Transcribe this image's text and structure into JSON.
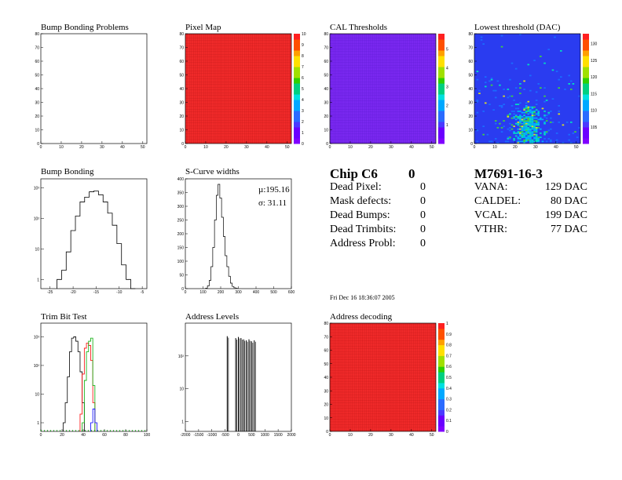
{
  "panels": {
    "bump_problems": {
      "title": "Bump Bonding Problems"
    },
    "pixel_map": {
      "title": "Pixel Map"
    },
    "cal_thresholds": {
      "title": "CAL Thresholds"
    },
    "lowest_threshold": {
      "title": "Lowest threshold (DAC)"
    },
    "bump_bonding": {
      "title": "Bump Bonding"
    },
    "scurve": {
      "title": "S-Curve widths",
      "mu": "µ:195.16",
      "sigma": "σ: 31.11"
    },
    "trim": {
      "title": "Trim Bit Test"
    },
    "address_levels": {
      "title": "Address Levels"
    },
    "address_decoding": {
      "title": "Address decoding"
    }
  },
  "chip": {
    "label": "Chip C6",
    "number": "0",
    "rows": [
      {
        "label": "Dead Pixel:",
        "value": "0"
      },
      {
        "label": "Mask defects:",
        "value": "0"
      },
      {
        "label": "Dead Bumps:",
        "value": "0"
      },
      {
        "label": "Dead Trimbits:",
        "value": "0"
      },
      {
        "label": "Address Probl:",
        "value": "0"
      }
    ],
    "date": "Fri Dec 16 18:36:07 2005"
  },
  "module": {
    "id": "M7691-16-3",
    "rows": [
      {
        "label": "VANA:",
        "value": "129 DAC"
      },
      {
        "label": "CALDEL:",
        "value": "80 DAC"
      },
      {
        "label": "VCAL:",
        "value": "199 DAC"
      },
      {
        "label": "VTHR:",
        "value": "77 DAC"
      }
    ]
  },
  "chart_data": [
    {
      "type": "heatmap",
      "title": "Bump Bonding Problems",
      "xlim": [
        0,
        52
      ],
      "ylim": [
        0,
        80
      ],
      "xticks": [
        "0",
        "10",
        "20",
        "30",
        "40",
        "50"
      ],
      "yticks": [
        "0",
        "10",
        "20",
        "30",
        "40",
        "50",
        "60",
        "70",
        "80"
      ],
      "values": "empty"
    },
    {
      "type": "heatmap",
      "title": "Pixel Map",
      "xlim": [
        0,
        52
      ],
      "ylim": [
        0,
        80
      ],
      "xticks": [
        "0",
        "10",
        "20",
        "30",
        "40",
        "50"
      ],
      "yticks": [
        "0",
        "10",
        "20",
        "30",
        "40",
        "50",
        "60",
        "70",
        "80"
      ],
      "zlim": [
        0,
        10
      ],
      "zticks": [
        "0",
        "1",
        "2",
        "3",
        "4",
        "5",
        "6",
        "7",
        "8",
        "9",
        "10"
      ],
      "uniform_value": 10
    },
    {
      "type": "heatmap",
      "title": "CAL Thresholds",
      "xlim": [
        0,
        52
      ],
      "ylim": [
        0,
        80
      ],
      "xticks": [
        "0",
        "10",
        "20",
        "30",
        "40",
        "50"
      ],
      "yticks": [
        "0",
        "10",
        "20",
        "30",
        "40",
        "50",
        "60",
        "70",
        "80"
      ],
      "zlim": [
        0,
        5.8
      ],
      "zticks": [
        "1",
        "2",
        "3",
        "4",
        "5"
      ],
      "uniform_value": 0.5
    },
    {
      "type": "heatmap",
      "title": "Lowest threshold (DAC)",
      "xlim": [
        0,
        52
      ],
      "ylim": [
        0,
        80
      ],
      "xticks": [
        "0",
        "10",
        "20",
        "30",
        "40",
        "50"
      ],
      "yticks": [
        "0",
        "10",
        "20",
        "30",
        "40",
        "50",
        "60",
        "70",
        "80"
      ],
      "zlim": [
        100,
        133
      ],
      "zticks": [
        "105",
        "110",
        "115",
        "120",
        "125",
        "130"
      ],
      "baseline_value": 100,
      "hotspot": {
        "x_center": 26,
        "y_center": 12,
        "description_values": [
          105,
          110,
          115
        ]
      }
    },
    {
      "type": "line",
      "title": "Bump Bonding",
      "log_y": true,
      "xlim": [
        -27,
        -4
      ],
      "xticks": [
        "-25",
        "-20",
        "-15",
        "-10",
        "-5"
      ],
      "yticks": [
        "1",
        "10",
        "10²",
        "10³"
      ],
      "ylim": [
        0.5,
        2000
      ],
      "x": [
        -23,
        -22,
        -21,
        -20,
        -19,
        -18,
        -17,
        -16,
        -15,
        -14,
        -13,
        -12,
        -11,
        -10,
        -9,
        -8,
        -7
      ],
      "values": [
        1,
        2,
        8,
        40,
        120,
        350,
        500,
        750,
        800,
        600,
        350,
        150,
        60,
        15,
        3,
        1,
        0
      ]
    },
    {
      "type": "line",
      "title": "S-Curve widths",
      "xlim": [
        0,
        600
      ],
      "ylim": [
        0,
        400
      ],
      "xticks": [
        "0",
        "100",
        "200",
        "300",
        "400",
        "500",
        "600"
      ],
      "yticks": [
        "0",
        "50",
        "100",
        "150",
        "200",
        "250",
        "300",
        "350",
        "400"
      ],
      "x": [
        120,
        130,
        140,
        150,
        160,
        170,
        180,
        190,
        200,
        210,
        220,
        230,
        240,
        250,
        260,
        270,
        280,
        290
      ],
      "values": [
        2,
        10,
        30,
        80,
        150,
        250,
        340,
        380,
        330,
        260,
        190,
        120,
        80,
        45,
        20,
        8,
        3,
        1
      ]
    },
    {
      "type": "line",
      "title": "Trim Bit Test",
      "log_y": true,
      "xlim": [
        0,
        100
      ],
      "xticks": [
        "0",
        "20",
        "40",
        "60",
        "80",
        "100"
      ],
      "yticks": [
        "1",
        "10",
        "10²",
        "10³"
      ],
      "ylim": [
        0.5,
        3000
      ],
      "series": [
        {
          "color": "#000000",
          "x": [
            22,
            24,
            26,
            28,
            30,
            32,
            34,
            36,
            38,
            40
          ],
          "values": [
            1,
            5,
            40,
            300,
            900,
            1000,
            700,
            300,
            60,
            5
          ]
        },
        {
          "color": "#ff0000",
          "x": [
            38,
            40,
            42,
            44,
            46,
            48,
            50
          ],
          "values": [
            2,
            50,
            400,
            600,
            500,
            150,
            5
          ]
        },
        {
          "color": "#00aa00",
          "x": [
            40,
            42,
            44,
            46,
            48,
            50
          ],
          "values": [
            1,
            30,
            300,
            700,
            900,
            20
          ]
        },
        {
          "color": "#0000ff",
          "x": [
            48,
            50,
            52
          ],
          "values": [
            1,
            3,
            1
          ]
        }
      ]
    },
    {
      "type": "bar",
      "title": "Address Levels",
      "log_y": true,
      "xlim": [
        -2000,
        2000
      ],
      "xticks": [
        "-2000",
        "-1500",
        "-1000",
        "-500",
        "0",
        "500",
        "1000",
        "1500",
        "2000"
      ],
      "yticks": [
        "1",
        "10",
        "10²"
      ],
      "ylim": [
        0.5,
        1000
      ],
      "x": [
        -420,
        -100,
        0,
        100,
        200,
        300,
        400,
        500,
        600
      ],
      "values": [
        400,
        350,
        380,
        350,
        320,
        300,
        320,
        280,
        300
      ]
    },
    {
      "type": "heatmap",
      "title": "Address decoding",
      "xlim": [
        0,
        52
      ],
      "ylim": [
        0,
        80
      ],
      "xticks": [
        "0",
        "10",
        "20",
        "30",
        "40",
        "50"
      ],
      "yticks": [
        "0",
        "10",
        "20",
        "30",
        "40",
        "50",
        "60",
        "70",
        "80"
      ],
      "zlim": [
        0,
        1
      ],
      "zticks": [
        "0",
        "0.1",
        "0.2",
        "0.3",
        "0.4",
        "0.5",
        "0.6",
        "0.7",
        "0.8",
        "0.9",
        "1"
      ],
      "uniform_value": 1
    }
  ]
}
